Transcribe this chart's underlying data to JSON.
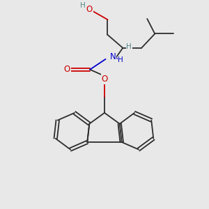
{
  "bg_color": "#e8e8e8",
  "bond_color": "#2d2d2d",
  "o_color": "#cc0000",
  "n_color": "#0000cc",
  "h_color": "#558888",
  "figsize": [
    3.0,
    3.0
  ],
  "dpi": 100,
  "lw": 1.3,
  "fs": 7.5,
  "xlim": [
    0,
    10
  ],
  "ylim": [
    0,
    10
  ]
}
